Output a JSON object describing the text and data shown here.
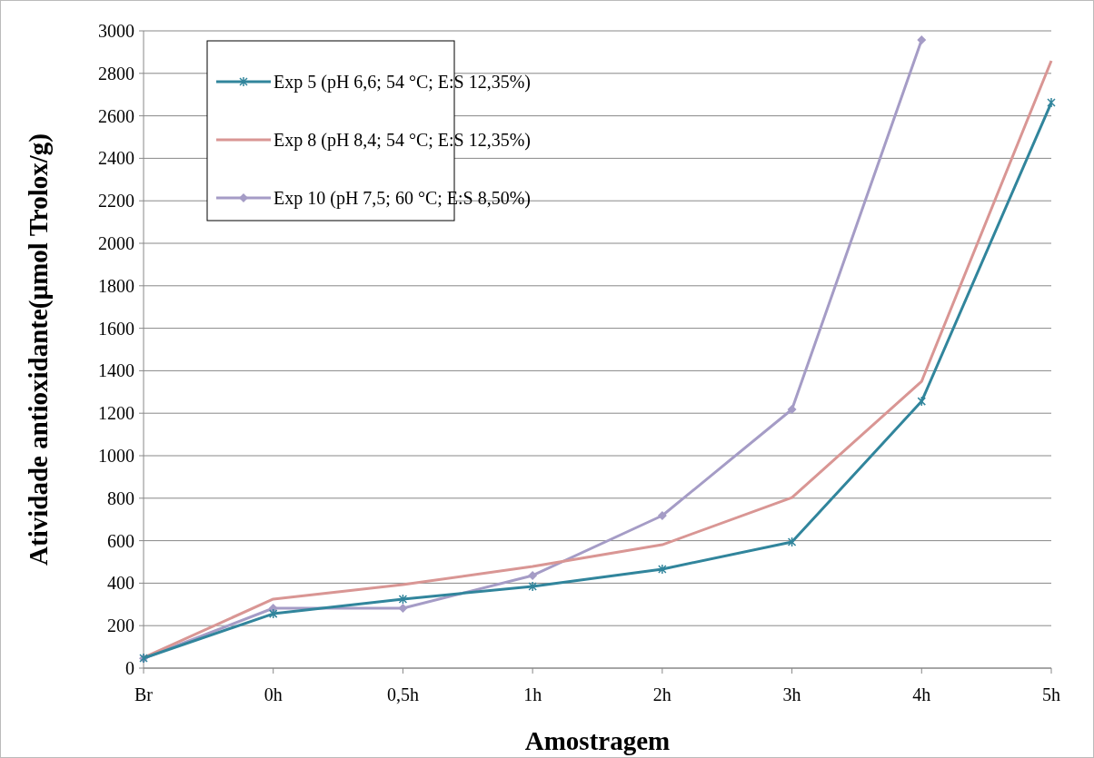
{
  "chart_data": {
    "type": "line",
    "xlabel": "Amostragem",
    "ylabel": "Atividade antioxidante(µmol Trolox/g)",
    "categories": [
      "Br",
      "0h",
      "0,5h",
      "1h",
      "2h",
      "3h",
      "4h",
      "5h"
    ],
    "series": [
      {
        "name": "Exp 5 (pH 6,6; 54 °C; E:S 12,35%)",
        "color": "#31859c",
        "marker": "cross",
        "values": [
          47,
          256,
          325,
          385,
          466,
          594,
          1256,
          2662
        ]
      },
      {
        "name": "Exp 8 (pH 8,4; 54 °C; E:S 12,35%)",
        "color": "#d99694",
        "marker": "none",
        "values": [
          50,
          325,
          393,
          479,
          581,
          803,
          1350,
          2859
        ]
      },
      {
        "name": "Exp 10 (pH 7,5; 60 °C; E:S 8,50%)",
        "color": "#a59cc6",
        "marker": "diamond",
        "values": [
          46,
          282,
          282,
          436,
          718,
          1218,
          2957,
          null
        ]
      }
    ],
    "ylim": [
      0,
      3000
    ],
    "yticks": [
      0,
      200,
      400,
      600,
      800,
      1000,
      1200,
      1400,
      1600,
      1800,
      2000,
      2200,
      2400,
      2600,
      2800,
      3000
    ],
    "grid": "y",
    "legend": "top left"
  }
}
